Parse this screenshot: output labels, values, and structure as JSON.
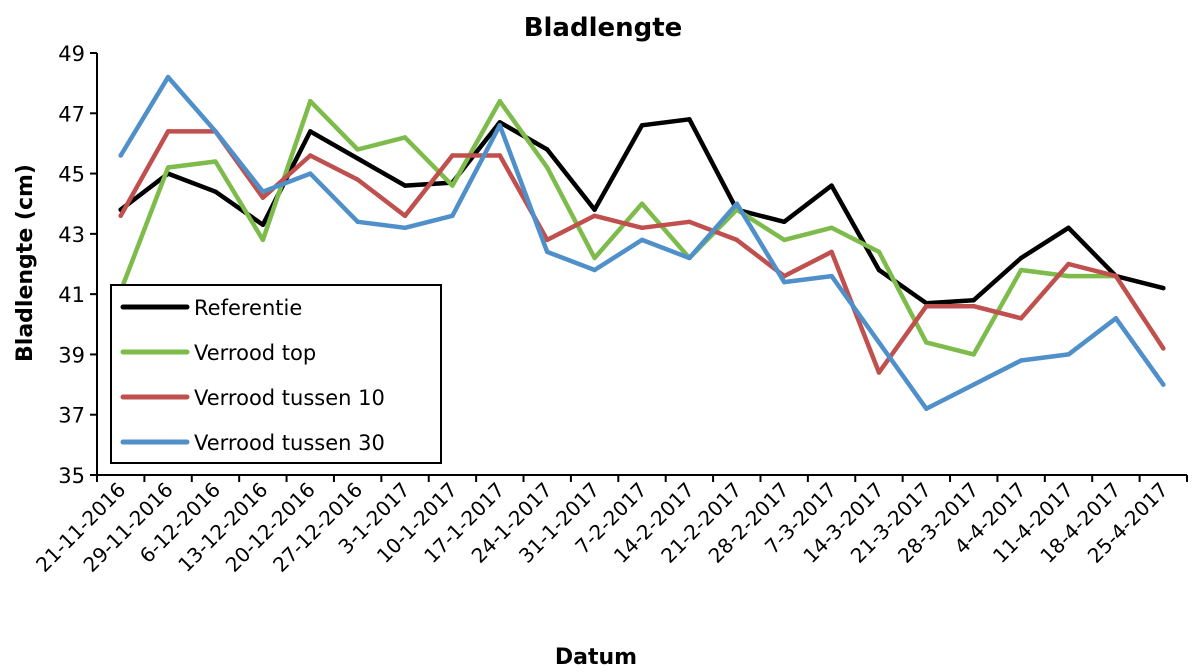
{
  "chart_data": {
    "type": "line",
    "title": "Bladlengte",
    "xlabel": "Datum",
    "ylabel": "Bladlengte (cm)",
    "ylim": [
      35,
      49
    ],
    "yticks": [
      35,
      37,
      39,
      41,
      43,
      45,
      47,
      49
    ],
    "grid": false,
    "legend_position": "bottom-left",
    "categories": [
      "21-11-2016",
      "29-11-2016",
      "6-12-2016",
      "13-12-2016",
      "20-12-2016",
      "27-12-2016",
      "3-1-2017",
      "10-1-2017",
      "17-1-2017",
      "24-1-2017",
      "31-1-2017",
      "7-2-2017",
      "14-2-2017",
      "21-2-2017",
      "28-2-2017",
      "7-3-2017",
      "14-3-2017",
      "21-3-2017",
      "28-3-2017",
      "4-4-2017",
      "11-4-2017",
      "18-4-2017",
      "25-4-2017"
    ],
    "series": [
      {
        "name": "Referentie",
        "color": "#000000",
        "values": [
          43.8,
          45.0,
          44.4,
          43.3,
          46.4,
          45.5,
          44.6,
          44.7,
          46.7,
          45.8,
          43.8,
          46.6,
          46.8,
          43.8,
          43.4,
          44.6,
          41.8,
          40.7,
          40.8,
          42.2,
          43.2,
          41.6,
          41.2
        ]
      },
      {
        "name": "Verrood top",
        "color": "#7dbb4b",
        "values": [
          41.1,
          45.2,
          45.4,
          42.8,
          47.4,
          45.8,
          46.2,
          44.6,
          47.4,
          45.2,
          42.2,
          44.0,
          42.2,
          43.8,
          42.8,
          43.2,
          42.4,
          39.4,
          39.0,
          41.8,
          41.6,
          41.6,
          null
        ]
      },
      {
        "name": "Verrood tussen 10",
        "color": "#c0504d",
        "values": [
          43.6,
          46.4,
          46.4,
          44.2,
          45.6,
          44.8,
          43.6,
          45.6,
          45.6,
          42.8,
          43.6,
          43.2,
          43.4,
          42.8,
          41.6,
          42.4,
          38.4,
          40.6,
          40.6,
          40.2,
          42.0,
          41.6,
          39.2
        ]
      },
      {
        "name": "Verrood tussen 30",
        "color": "#4f8fca",
        "values": [
          45.6,
          48.2,
          46.4,
          44.4,
          45.0,
          43.4,
          43.2,
          43.6,
          46.6,
          42.4,
          41.8,
          42.8,
          42.2,
          44.0,
          41.4,
          41.6,
          39.4,
          37.2,
          38.0,
          38.8,
          39.0,
          40.2,
          38.0
        ]
      }
    ]
  }
}
